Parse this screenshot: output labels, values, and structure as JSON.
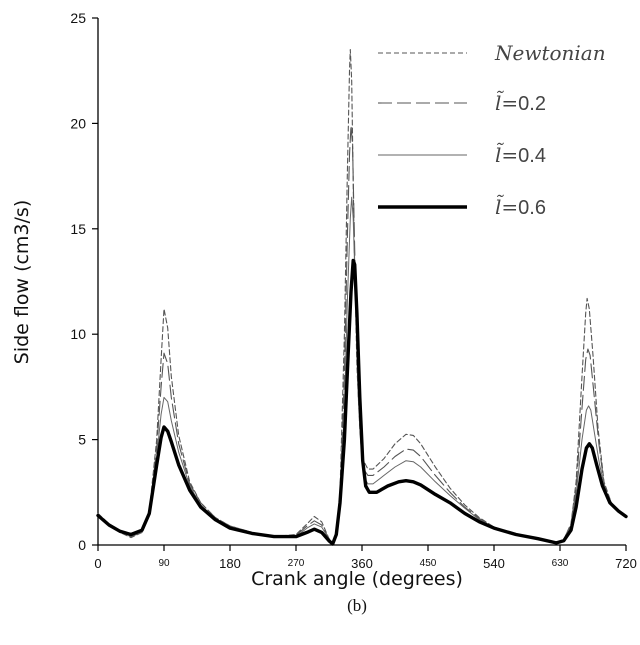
{
  "chart_data": {
    "type": "line",
    "xlabel": "Crank angle  (degrees)",
    "ylabel": "Side  flow  (cm3/s)",
    "caption": "(b)",
    "xlim": [
      0,
      720
    ],
    "ylim": [
      0,
      25
    ],
    "xticks": [
      0,
      90,
      180,
      270,
      360,
      450,
      540,
      630,
      720
    ],
    "xtick_labels": [
      "0",
      "90",
      "180",
      "270",
      "360",
      "450",
      "540",
      "630",
      "720"
    ],
    "yticks": [
      0,
      5,
      10,
      15,
      20,
      25
    ],
    "ytick_labels": [
      "0",
      "5",
      "10",
      "15",
      "20",
      "25"
    ],
    "grid": false,
    "legend_position": "top-right",
    "series": [
      {
        "label_prefix": "",
        "label_value": "Newtonian",
        "style": "short-dash",
        "color": "#555555",
        "points": [
          [
            0,
            1.5
          ],
          [
            15,
            1.0
          ],
          [
            30,
            0.6
          ],
          [
            45,
            0.35
          ],
          [
            60,
            0.6
          ],
          [
            70,
            1.6
          ],
          [
            80,
            5.0
          ],
          [
            86,
            8.8
          ],
          [
            90,
            11.2
          ],
          [
            95,
            10.3
          ],
          [
            100,
            8.0
          ],
          [
            110,
            5.2
          ],
          [
            125,
            3.0
          ],
          [
            140,
            2.0
          ],
          [
            160,
            1.3
          ],
          [
            180,
            0.9
          ],
          [
            210,
            0.6
          ],
          [
            240,
            0.4
          ],
          [
            270,
            0.5
          ],
          [
            285,
            1.0
          ],
          [
            295,
            1.35
          ],
          [
            305,
            1.1
          ],
          [
            315,
            0.3
          ],
          [
            320,
            0.05
          ],
          [
            325,
            0.5
          ],
          [
            330,
            2.5
          ],
          [
            336,
            10.0
          ],
          [
            340,
            17.5
          ],
          [
            343,
            22.5
          ],
          [
            344,
            23.5
          ],
          [
            346,
            22.0
          ],
          [
            349,
            15.0
          ],
          [
            353,
            8.5
          ],
          [
            357,
            5.5
          ],
          [
            362,
            4.0
          ],
          [
            368,
            3.6
          ],
          [
            375,
            3.6
          ],
          [
            390,
            4.1
          ],
          [
            405,
            4.8
          ],
          [
            420,
            5.25
          ],
          [
            430,
            5.2
          ],
          [
            440,
            4.8
          ],
          [
            460,
            3.7
          ],
          [
            480,
            2.7
          ],
          [
            500,
            1.9
          ],
          [
            520,
            1.3
          ],
          [
            540,
            0.85
          ],
          [
            570,
            0.5
          ],
          [
            600,
            0.3
          ],
          [
            625,
            0.1
          ],
          [
            635,
            0.25
          ],
          [
            645,
            1.0
          ],
          [
            652,
            3.0
          ],
          [
            660,
            8.0
          ],
          [
            665,
            11.0
          ],
          [
            667,
            11.7
          ],
          [
            670,
            11.2
          ],
          [
            675,
            9.0
          ],
          [
            682,
            5.5
          ],
          [
            690,
            3.0
          ],
          [
            700,
            2.0
          ],
          [
            710,
            1.6
          ],
          [
            720,
            1.3
          ]
        ]
      },
      {
        "label_prefix": "l̃=",
        "label_value": "0.2",
        "style": "long-dash",
        "color": "#555555",
        "points": [
          [
            0,
            1.45
          ],
          [
            15,
            1.0
          ],
          [
            30,
            0.6
          ],
          [
            45,
            0.4
          ],
          [
            60,
            0.6
          ],
          [
            70,
            1.5
          ],
          [
            80,
            4.6
          ],
          [
            86,
            7.5
          ],
          [
            90,
            9.1
          ],
          [
            95,
            8.6
          ],
          [
            100,
            7.0
          ],
          [
            110,
            4.8
          ],
          [
            125,
            2.9
          ],
          [
            140,
            2.0
          ],
          [
            160,
            1.3
          ],
          [
            180,
            0.9
          ],
          [
            210,
            0.6
          ],
          [
            240,
            0.4
          ],
          [
            270,
            0.45
          ],
          [
            285,
            0.9
          ],
          [
            295,
            1.15
          ],
          [
            305,
            0.95
          ],
          [
            315,
            0.3
          ],
          [
            320,
            0.05
          ],
          [
            325,
            0.5
          ],
          [
            330,
            2.3
          ],
          [
            336,
            8.0
          ],
          [
            340,
            14.5
          ],
          [
            343,
            18.5
          ],
          [
            345,
            19.9
          ],
          [
            347,
            19.0
          ],
          [
            350,
            14.0
          ],
          [
            354,
            8.0
          ],
          [
            358,
            5.0
          ],
          [
            362,
            3.6
          ],
          [
            368,
            3.3
          ],
          [
            375,
            3.3
          ],
          [
            390,
            3.7
          ],
          [
            405,
            4.2
          ],
          [
            420,
            4.55
          ],
          [
            430,
            4.5
          ],
          [
            440,
            4.2
          ],
          [
            460,
            3.3
          ],
          [
            480,
            2.5
          ],
          [
            500,
            1.8
          ],
          [
            520,
            1.25
          ],
          [
            540,
            0.85
          ],
          [
            570,
            0.5
          ],
          [
            600,
            0.3
          ],
          [
            625,
            0.1
          ],
          [
            635,
            0.25
          ],
          [
            645,
            1.0
          ],
          [
            652,
            2.7
          ],
          [
            660,
            6.5
          ],
          [
            665,
            8.8
          ],
          [
            668,
            9.3
          ],
          [
            671,
            9.0
          ],
          [
            676,
            7.3
          ],
          [
            683,
            4.8
          ],
          [
            690,
            2.9
          ],
          [
            700,
            2.0
          ],
          [
            710,
            1.6
          ],
          [
            720,
            1.3
          ]
        ]
      },
      {
        "label_prefix": "l̃=",
        "label_value": "0.4",
        "style": "thin-solid",
        "color": "#666666",
        "points": [
          [
            0,
            1.45
          ],
          [
            15,
            1.0
          ],
          [
            30,
            0.6
          ],
          [
            45,
            0.45
          ],
          [
            60,
            0.6
          ],
          [
            70,
            1.4
          ],
          [
            80,
            4.2
          ],
          [
            86,
            6.2
          ],
          [
            90,
            7.0
          ],
          [
            95,
            6.8
          ],
          [
            100,
            5.9
          ],
          [
            110,
            4.4
          ],
          [
            125,
            2.8
          ],
          [
            140,
            1.9
          ],
          [
            160,
            1.25
          ],
          [
            180,
            0.85
          ],
          [
            210,
            0.55
          ],
          [
            240,
            0.4
          ],
          [
            270,
            0.4
          ],
          [
            285,
            0.8
          ],
          [
            295,
            1.0
          ],
          [
            305,
            0.85
          ],
          [
            315,
            0.3
          ],
          [
            320,
            0.05
          ],
          [
            325,
            0.5
          ],
          [
            330,
            2.2
          ],
          [
            336,
            6.5
          ],
          [
            340,
            11.5
          ],
          [
            344,
            15.5
          ],
          [
            346,
            16.5
          ],
          [
            348,
            15.5
          ],
          [
            351,
            12.0
          ],
          [
            355,
            7.0
          ],
          [
            359,
            4.5
          ],
          [
            363,
            3.2
          ],
          [
            368,
            2.9
          ],
          [
            375,
            2.9
          ],
          [
            390,
            3.3
          ],
          [
            405,
            3.7
          ],
          [
            420,
            4.0
          ],
          [
            430,
            3.95
          ],
          [
            440,
            3.7
          ],
          [
            460,
            3.0
          ],
          [
            480,
            2.35
          ],
          [
            500,
            1.75
          ],
          [
            520,
            1.2
          ],
          [
            540,
            0.85
          ],
          [
            570,
            0.5
          ],
          [
            600,
            0.3
          ],
          [
            625,
            0.1
          ],
          [
            635,
            0.25
          ],
          [
            645,
            0.9
          ],
          [
            652,
            2.4
          ],
          [
            660,
            5.0
          ],
          [
            666,
            6.4
          ],
          [
            669,
            6.6
          ],
          [
            672,
            6.4
          ],
          [
            677,
            5.3
          ],
          [
            684,
            3.8
          ],
          [
            692,
            2.6
          ],
          [
            700,
            2.0
          ],
          [
            710,
            1.6
          ],
          [
            720,
            1.3
          ]
        ]
      },
      {
        "label_prefix": "l̃=",
        "label_value": "0.6",
        "style": "thick-solid",
        "color": "#000000",
        "points": [
          [
            0,
            1.4
          ],
          [
            15,
            0.95
          ],
          [
            30,
            0.65
          ],
          [
            45,
            0.5
          ],
          [
            60,
            0.7
          ],
          [
            70,
            1.5
          ],
          [
            80,
            3.8
          ],
          [
            86,
            5.1
          ],
          [
            90,
            5.6
          ],
          [
            95,
            5.4
          ],
          [
            100,
            4.9
          ],
          [
            110,
            3.8
          ],
          [
            125,
            2.6
          ],
          [
            140,
            1.8
          ],
          [
            160,
            1.2
          ],
          [
            180,
            0.8
          ],
          [
            210,
            0.55
          ],
          [
            240,
            0.4
          ],
          [
            270,
            0.4
          ],
          [
            285,
            0.6
          ],
          [
            295,
            0.75
          ],
          [
            305,
            0.6
          ],
          [
            315,
            0.2
          ],
          [
            320,
            0.05
          ],
          [
            325,
            0.5
          ],
          [
            330,
            2.0
          ],
          [
            336,
            5.0
          ],
          [
            341,
            9.0
          ],
          [
            345,
            12.0
          ],
          [
            348,
            13.5
          ],
          [
            350,
            13.3
          ],
          [
            353,
            11.0
          ],
          [
            357,
            7.0
          ],
          [
            361,
            4.0
          ],
          [
            365,
            2.8
          ],
          [
            370,
            2.5
          ],
          [
            380,
            2.5
          ],
          [
            395,
            2.8
          ],
          [
            410,
            3.0
          ],
          [
            420,
            3.05
          ],
          [
            430,
            3.0
          ],
          [
            440,
            2.85
          ],
          [
            460,
            2.4
          ],
          [
            480,
            2.0
          ],
          [
            500,
            1.5
          ],
          [
            520,
            1.1
          ],
          [
            540,
            0.8
          ],
          [
            570,
            0.5
          ],
          [
            600,
            0.3
          ],
          [
            625,
            0.1
          ],
          [
            635,
            0.2
          ],
          [
            645,
            0.7
          ],
          [
            652,
            1.8
          ],
          [
            660,
            3.6
          ],
          [
            666,
            4.6
          ],
          [
            670,
            4.8
          ],
          [
            674,
            4.6
          ],
          [
            680,
            3.8
          ],
          [
            688,
            2.8
          ],
          [
            698,
            2.0
          ],
          [
            710,
            1.6
          ],
          [
            720,
            1.35
          ]
        ]
      }
    ]
  }
}
